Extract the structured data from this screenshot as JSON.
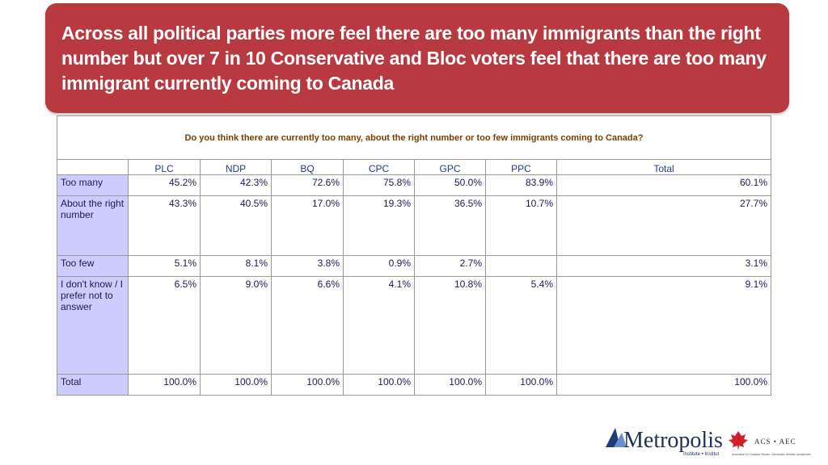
{
  "header": {
    "title": "Across all political parties more feel there are too many immigrants than the right number but over 7 in 10 Conservative and Bloc voters feel that there are too many immigrant currently coming to Canada"
  },
  "table": {
    "question": "Do you think there are currently too many, about the right number or too few immigrants coming to Canada?",
    "columns": [
      "PLC",
      "NDP",
      "BQ",
      "CPC",
      "GPC",
      "PPC",
      "Total"
    ],
    "rows": [
      {
        "label": "Too many",
        "values": [
          "45.2%",
          "42.3%",
          "72.6%",
          "75.8%",
          "50.0%",
          "83.9%",
          "60.1%"
        ]
      },
      {
        "label": "About the right number",
        "values": [
          "43.3%",
          "40.5%",
          "17.0%",
          "19.3%",
          "36.5%",
          "10.7%",
          "27.7%"
        ]
      },
      {
        "label": "Too few",
        "values": [
          "5.1%",
          "8.1%",
          "3.8%",
          "0.9%",
          "2.7%",
          null,
          "3.1%"
        ]
      },
      {
        "label": "I don't know / I prefer not to answer",
        "values": [
          "6.5%",
          "9.0%",
          "6.6%",
          "4.1%",
          "10.8%",
          "5.4%",
          "9.1%"
        ]
      },
      {
        "label": "Total",
        "values": [
          "100.0%",
          "100.0%",
          "100.0%",
          "100.0%",
          "100.0%",
          "100.0%",
          "100.0%"
        ]
      }
    ]
  },
  "logo": {
    "name": "Metropolis",
    "sub": "Institute • Institut",
    "acs": "ACS • AEC",
    "acs_sub": "Association for Canadian Studies • Association d'études canadiennes"
  }
}
